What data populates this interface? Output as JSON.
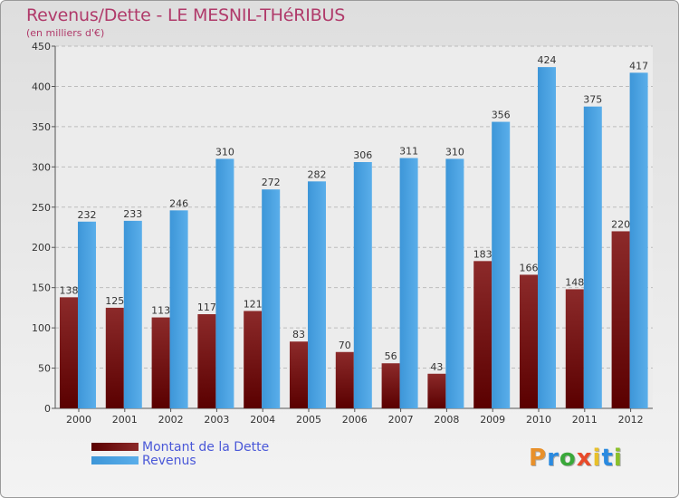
{
  "chart_data": {
    "type": "bar",
    "title": "Revenus/Dette - LE MESNIL-THéRIBUS",
    "subtitle": "(en milliers d'€)",
    "categories": [
      "2000",
      "2001",
      "2002",
      "2003",
      "2004",
      "2005",
      "2006",
      "2007",
      "2008",
      "2009",
      "2010",
      "2011",
      "2012"
    ],
    "series": [
      {
        "name": "Montant de la Dette",
        "color": "#7a1a1a",
        "values": [
          138,
          125,
          113,
          117,
          121,
          83,
          70,
          56,
          43,
          183,
          166,
          148,
          220
        ]
      },
      {
        "name": "Revenus",
        "color": "#3a9ae0",
        "values": [
          232,
          233,
          246,
          310,
          272,
          282,
          306,
          311,
          310,
          356,
          424,
          375,
          417
        ]
      }
    ],
    "ylim": [
      0,
      450
    ],
    "yticks": [
      0,
      50,
      100,
      150,
      200,
      250,
      300,
      350,
      400,
      450
    ],
    "grid": true,
    "legend": "bottom-left"
  },
  "logo": {
    "letters": [
      "P",
      "r",
      "o",
      "x",
      "i",
      "t",
      "i"
    ],
    "colors": [
      "#e8902a",
      "#2a8ae0",
      "#3aa83a",
      "#e84a2a",
      "#e8c02a",
      "#2a8ae0",
      "#8ac02a"
    ]
  }
}
